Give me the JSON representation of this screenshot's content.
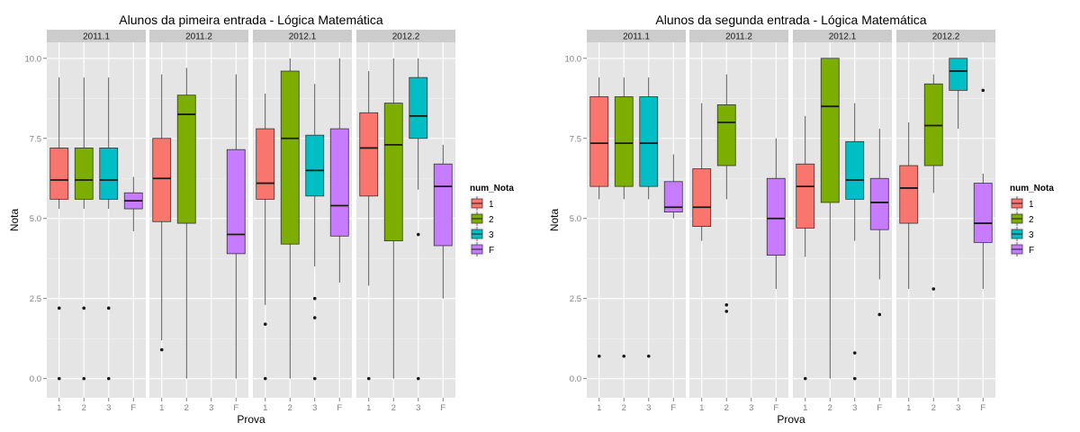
{
  "colors": {
    "1": "#F8766D",
    "2": "#7CAE00",
    "3": "#00BFC4",
    "F": "#C77CFF",
    "panel_bg": "#E5E5E5",
    "strip_bg": "#CCCCCC",
    "grid": "#FFFFFF"
  },
  "legend": {
    "title": "num_Nota",
    "items": [
      {
        "key": "1",
        "label": "1"
      },
      {
        "key": "2",
        "label": "2"
      },
      {
        "key": "3",
        "label": "3"
      },
      {
        "key": "F",
        "label": "F"
      }
    ]
  },
  "chart_data": [
    {
      "type": "boxplot",
      "title": "Alunos da pimeira entrada -  Lógica Matemática",
      "xlabel": "Prova",
      "ylabel": "Nota",
      "ylim": [
        -0.6,
        10.5
      ],
      "yticks": [
        "0.0",
        "2.5",
        "5.0",
        "7.5",
        "10.0"
      ],
      "ytick_values": [
        0,
        2.5,
        5,
        7.5,
        10
      ],
      "x_categories": [
        "1",
        "2",
        "3",
        "F"
      ],
      "legend_position": "right",
      "facets": [
        {
          "label": "2011.1",
          "boxes": [
            {
              "x": "1",
              "q1": 5.6,
              "median": 6.2,
              "q3": 7.2,
              "lower": 5.3,
              "upper": 9.4,
              "outliers": [
                2.2,
                0.0
              ]
            },
            {
              "x": "2",
              "q1": 5.6,
              "median": 6.2,
              "q3": 7.2,
              "lower": 5.3,
              "upper": 9.4,
              "outliers": [
                2.2,
                0.0
              ]
            },
            {
              "x": "3",
              "q1": 5.6,
              "median": 6.2,
              "q3": 7.2,
              "lower": 5.3,
              "upper": 9.4,
              "outliers": [
                2.2,
                0.0
              ]
            },
            {
              "x": "F",
              "q1": 5.3,
              "median": 5.55,
              "q3": 5.8,
              "lower": 4.6,
              "upper": 6.3,
              "outliers": []
            }
          ]
        },
        {
          "label": "2011.2",
          "boxes": [
            {
              "x": "1",
              "q1": 4.9,
              "median": 6.25,
              "q3": 7.5,
              "lower": 1.2,
              "upper": 9.5,
              "outliers": [
                0.9
              ]
            },
            {
              "x": "2",
              "q1": 4.85,
              "median": 8.25,
              "q3": 8.85,
              "lower": 0.0,
              "upper": 9.7,
              "outliers": []
            },
            {
              "x": "F",
              "q1": 3.9,
              "median": 4.5,
              "q3": 7.15,
              "lower": 0.0,
              "upper": 9.5,
              "outliers": []
            }
          ]
        },
        {
          "label": "2012.1",
          "boxes": [
            {
              "x": "1",
              "q1": 5.6,
              "median": 6.1,
              "q3": 7.8,
              "lower": 2.3,
              "upper": 8.9,
              "outliers": [
                1.7,
                0.0
              ]
            },
            {
              "x": "2",
              "q1": 4.2,
              "median": 7.5,
              "q3": 9.6,
              "lower": 0.0,
              "upper": 10.0,
              "outliers": []
            },
            {
              "x": "3",
              "q1": 5.7,
              "median": 6.5,
              "q3": 7.6,
              "lower": 3.5,
              "upper": 9.2,
              "outliers": [
                2.5,
                1.9,
                0.0
              ]
            },
            {
              "x": "F",
              "q1": 4.45,
              "median": 5.4,
              "q3": 7.8,
              "lower": 3.0,
              "upper": 10.0,
              "outliers": []
            }
          ]
        },
        {
          "label": "2012.2",
          "boxes": [
            {
              "x": "1",
              "q1": 5.7,
              "median": 7.2,
              "q3": 8.3,
              "lower": 2.9,
              "upper": 9.6,
              "outliers": [
                0.0
              ]
            },
            {
              "x": "2",
              "q1": 4.3,
              "median": 7.3,
              "q3": 8.6,
              "lower": 0.0,
              "upper": 10.0,
              "outliers": []
            },
            {
              "x": "3",
              "q1": 7.5,
              "median": 8.2,
              "q3": 9.4,
              "lower": 5.9,
              "upper": 10.0,
              "outliers": [
                4.5,
                0.0
              ]
            },
            {
              "x": "F",
              "q1": 4.15,
              "median": 6.0,
              "q3": 6.7,
              "lower": 2.5,
              "upper": 7.3,
              "outliers": []
            }
          ]
        }
      ]
    },
    {
      "type": "boxplot",
      "title": "Alunos da segunda entrada -  Lógica Matemática",
      "xlabel": "Prova",
      "ylabel": "Nota",
      "ylim": [
        -0.6,
        10.5
      ],
      "yticks": [
        "0.0",
        "2.5",
        "5.0",
        "7.5",
        "10.0"
      ],
      "ytick_values": [
        0,
        2.5,
        5,
        7.5,
        10
      ],
      "x_categories": [
        "1",
        "2",
        "3",
        "F"
      ],
      "legend_position": "right",
      "facets": [
        {
          "label": "2011.1",
          "boxes": [
            {
              "x": "1",
              "q1": 6.0,
              "median": 7.35,
              "q3": 8.8,
              "lower": 5.6,
              "upper": 9.4,
              "outliers": [
                0.7
              ]
            },
            {
              "x": "2",
              "q1": 6.0,
              "median": 7.35,
              "q3": 8.8,
              "lower": 5.6,
              "upper": 9.4,
              "outliers": [
                0.7
              ]
            },
            {
              "x": "3",
              "q1": 6.0,
              "median": 7.35,
              "q3": 8.8,
              "lower": 5.6,
              "upper": 9.4,
              "outliers": [
                0.7
              ]
            },
            {
              "x": "F",
              "q1": 5.2,
              "median": 5.35,
              "q3": 6.15,
              "lower": 5.0,
              "upper": 7.0,
              "outliers": []
            }
          ]
        },
        {
          "label": "2011.2",
          "boxes": [
            {
              "x": "1",
              "q1": 4.75,
              "median": 5.35,
              "q3": 6.55,
              "lower": 4.3,
              "upper": 8.6,
              "outliers": []
            },
            {
              "x": "2",
              "q1": 6.65,
              "median": 8.0,
              "q3": 8.55,
              "lower": 5.6,
              "upper": 9.5,
              "outliers": [
                2.3,
                2.1
              ]
            },
            {
              "x": "F",
              "q1": 3.85,
              "median": 5.0,
              "q3": 6.25,
              "lower": 2.8,
              "upper": 7.5,
              "outliers": []
            }
          ]
        },
        {
          "label": "2012.1",
          "boxes": [
            {
              "x": "1",
              "q1": 4.7,
              "median": 6.0,
              "q3": 6.7,
              "lower": 3.8,
              "upper": 8.2,
              "outliers": [
                0.0
              ]
            },
            {
              "x": "2",
              "q1": 5.5,
              "median": 8.5,
              "q3": 10.0,
              "lower": 0.0,
              "upper": 10.0,
              "outliers": []
            },
            {
              "x": "3",
              "q1": 5.6,
              "median": 6.2,
              "q3": 7.4,
              "lower": 4.3,
              "upper": 8.6,
              "outliers": [
                0.8,
                0.0
              ]
            },
            {
              "x": "F",
              "q1": 4.65,
              "median": 5.5,
              "q3": 6.25,
              "lower": 3.1,
              "upper": 7.8,
              "outliers": [
                2.0
              ]
            }
          ]
        },
        {
          "label": "2012.2",
          "boxes": [
            {
              "x": "1",
              "q1": 4.85,
              "median": 5.95,
              "q3": 6.65,
              "lower": 2.8,
              "upper": 8.0,
              "outliers": []
            },
            {
              "x": "2",
              "q1": 6.65,
              "median": 7.9,
              "q3": 9.2,
              "lower": 5.8,
              "upper": 9.5,
              "outliers": [
                2.8
              ]
            },
            {
              "x": "3",
              "q1": 9.0,
              "median": 9.6,
              "q3": 10.0,
              "lower": 7.8,
              "upper": 10.0,
              "outliers": []
            },
            {
              "x": "F",
              "q1": 4.25,
              "median": 4.85,
              "q3": 6.1,
              "lower": 2.8,
              "upper": 6.4,
              "outliers": [
                9.0
              ]
            }
          ]
        }
      ]
    }
  ]
}
